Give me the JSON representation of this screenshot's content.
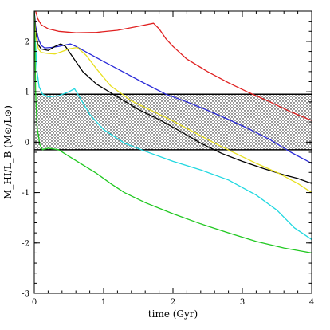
{
  "chart_data": {
    "type": "line",
    "title": "",
    "xlabel": "time (Gyr)",
    "ylabel": "M_HI/L_B (M⊙/L⊙)",
    "xlim": [
      0,
      4
    ],
    "ylim": [
      -3,
      2.6
    ],
    "x_ticks": [
      0,
      1,
      2,
      3,
      4
    ],
    "x_tick_labels": [
      "0",
      "1",
      "2",
      "3",
      "4"
    ],
    "y_ticks": [
      -3,
      -2,
      -1,
      0,
      1,
      2
    ],
    "y_tick_labels": [
      "-3",
      "-2",
      "-1",
      "0",
      "1",
      "2"
    ],
    "grid": false,
    "band": {
      "y_low": -0.15,
      "y_high": 0.95,
      "pattern": "dotted"
    },
    "series": [
      {
        "color": "#e02020",
        "points": [
          [
            0.02,
            2.6
          ],
          [
            0.05,
            2.45
          ],
          [
            0.1,
            2.33
          ],
          [
            0.2,
            2.25
          ],
          [
            0.35,
            2.2
          ],
          [
            0.6,
            2.17
          ],
          [
            0.9,
            2.18
          ],
          [
            1.2,
            2.22
          ],
          [
            1.5,
            2.3
          ],
          [
            1.72,
            2.36
          ],
          [
            1.8,
            2.25
          ],
          [
            1.9,
            2.05
          ],
          [
            2.0,
            1.9
          ],
          [
            2.2,
            1.65
          ],
          [
            2.5,
            1.4
          ],
          [
            2.8,
            1.18
          ],
          [
            3.1,
            0.98
          ],
          [
            3.4,
            0.8
          ],
          [
            3.7,
            0.6
          ],
          [
            4.0,
            0.43
          ]
        ]
      },
      {
        "color": "#2a2ad8",
        "points": [
          [
            0.0,
            2.6
          ],
          [
            0.02,
            2.3
          ],
          [
            0.06,
            2.05
          ],
          [
            0.1,
            1.92
          ],
          [
            0.15,
            1.87
          ],
          [
            0.25,
            1.88
          ],
          [
            0.35,
            1.9
          ],
          [
            0.45,
            1.93
          ],
          [
            0.52,
            1.95
          ],
          [
            0.6,
            1.9
          ],
          [
            0.8,
            1.75
          ],
          [
            1.0,
            1.6
          ],
          [
            1.3,
            1.38
          ],
          [
            1.6,
            1.16
          ],
          [
            1.9,
            0.95
          ],
          [
            2.2,
            0.8
          ],
          [
            2.5,
            0.63
          ],
          [
            2.8,
            0.45
          ],
          [
            3.1,
            0.26
          ],
          [
            3.4,
            0.05
          ],
          [
            3.7,
            -0.2
          ],
          [
            4.0,
            -0.42
          ]
        ]
      },
      {
        "color": "#000000",
        "points": [
          [
            0.0,
            2.6
          ],
          [
            0.02,
            2.2
          ],
          [
            0.05,
            1.95
          ],
          [
            0.1,
            1.85
          ],
          [
            0.2,
            1.82
          ],
          [
            0.3,
            1.9
          ],
          [
            0.38,
            1.95
          ],
          [
            0.45,
            1.9
          ],
          [
            0.55,
            1.7
          ],
          [
            0.7,
            1.4
          ],
          [
            0.9,
            1.15
          ],
          [
            1.2,
            0.9
          ],
          [
            1.5,
            0.65
          ],
          [
            1.8,
            0.45
          ],
          [
            2.1,
            0.22
          ],
          [
            2.4,
            -0.02
          ],
          [
            2.7,
            -0.22
          ],
          [
            3.0,
            -0.38
          ],
          [
            3.3,
            -0.52
          ],
          [
            3.6,
            -0.65
          ],
          [
            3.8,
            -0.72
          ],
          [
            4.0,
            -0.82
          ]
        ]
      },
      {
        "color": "#e8e020",
        "points": [
          [
            0.0,
            2.5
          ],
          [
            0.02,
            2.1
          ],
          [
            0.06,
            1.85
          ],
          [
            0.1,
            1.78
          ],
          [
            0.2,
            1.76
          ],
          [
            0.3,
            1.75
          ],
          [
            0.4,
            1.8
          ],
          [
            0.5,
            1.85
          ],
          [
            0.62,
            1.88
          ],
          [
            0.75,
            1.72
          ],
          [
            0.9,
            1.45
          ],
          [
            1.1,
            1.12
          ],
          [
            1.4,
            0.82
          ],
          [
            1.7,
            0.62
          ],
          [
            2.0,
            0.42
          ],
          [
            2.3,
            0.2
          ],
          [
            2.6,
            -0.02
          ],
          [
            2.9,
            -0.22
          ],
          [
            3.2,
            -0.42
          ],
          [
            3.5,
            -0.6
          ],
          [
            3.8,
            -0.82
          ],
          [
            4.0,
            -1.0
          ]
        ]
      },
      {
        "color": "#20d8e0",
        "points": [
          [
            0.0,
            2.3
          ],
          [
            0.02,
            1.9
          ],
          [
            0.04,
            1.4
          ],
          [
            0.07,
            1.1
          ],
          [
            0.12,
            0.95
          ],
          [
            0.2,
            0.9
          ],
          [
            0.35,
            0.92
          ],
          [
            0.5,
            1.0
          ],
          [
            0.58,
            1.06
          ],
          [
            0.65,
            0.9
          ],
          [
            0.8,
            0.55
          ],
          [
            1.0,
            0.25
          ],
          [
            1.3,
            -0.02
          ],
          [
            1.6,
            -0.18
          ],
          [
            2.0,
            -0.38
          ],
          [
            2.4,
            -0.55
          ],
          [
            2.8,
            -0.75
          ],
          [
            3.2,
            -1.05
          ],
          [
            3.5,
            -1.35
          ],
          [
            3.75,
            -1.7
          ],
          [
            4.0,
            -1.93
          ]
        ]
      },
      {
        "color": "#20c820",
        "points": [
          [
            0.0,
            2.6
          ],
          [
            0.01,
            2.0
          ],
          [
            0.02,
            1.0
          ],
          [
            0.04,
            0.3
          ],
          [
            0.08,
            -0.05
          ],
          [
            0.12,
            -0.15
          ],
          [
            0.2,
            -0.12
          ],
          [
            0.35,
            -0.15
          ],
          [
            0.5,
            -0.28
          ],
          [
            0.7,
            -0.45
          ],
          [
            0.9,
            -0.62
          ],
          [
            1.1,
            -0.82
          ],
          [
            1.3,
            -1.0
          ],
          [
            1.6,
            -1.2
          ],
          [
            2.0,
            -1.42
          ],
          [
            2.4,
            -1.62
          ],
          [
            2.8,
            -1.8
          ],
          [
            3.2,
            -1.97
          ],
          [
            3.6,
            -2.1
          ],
          [
            4.0,
            -2.2
          ]
        ]
      }
    ]
  }
}
